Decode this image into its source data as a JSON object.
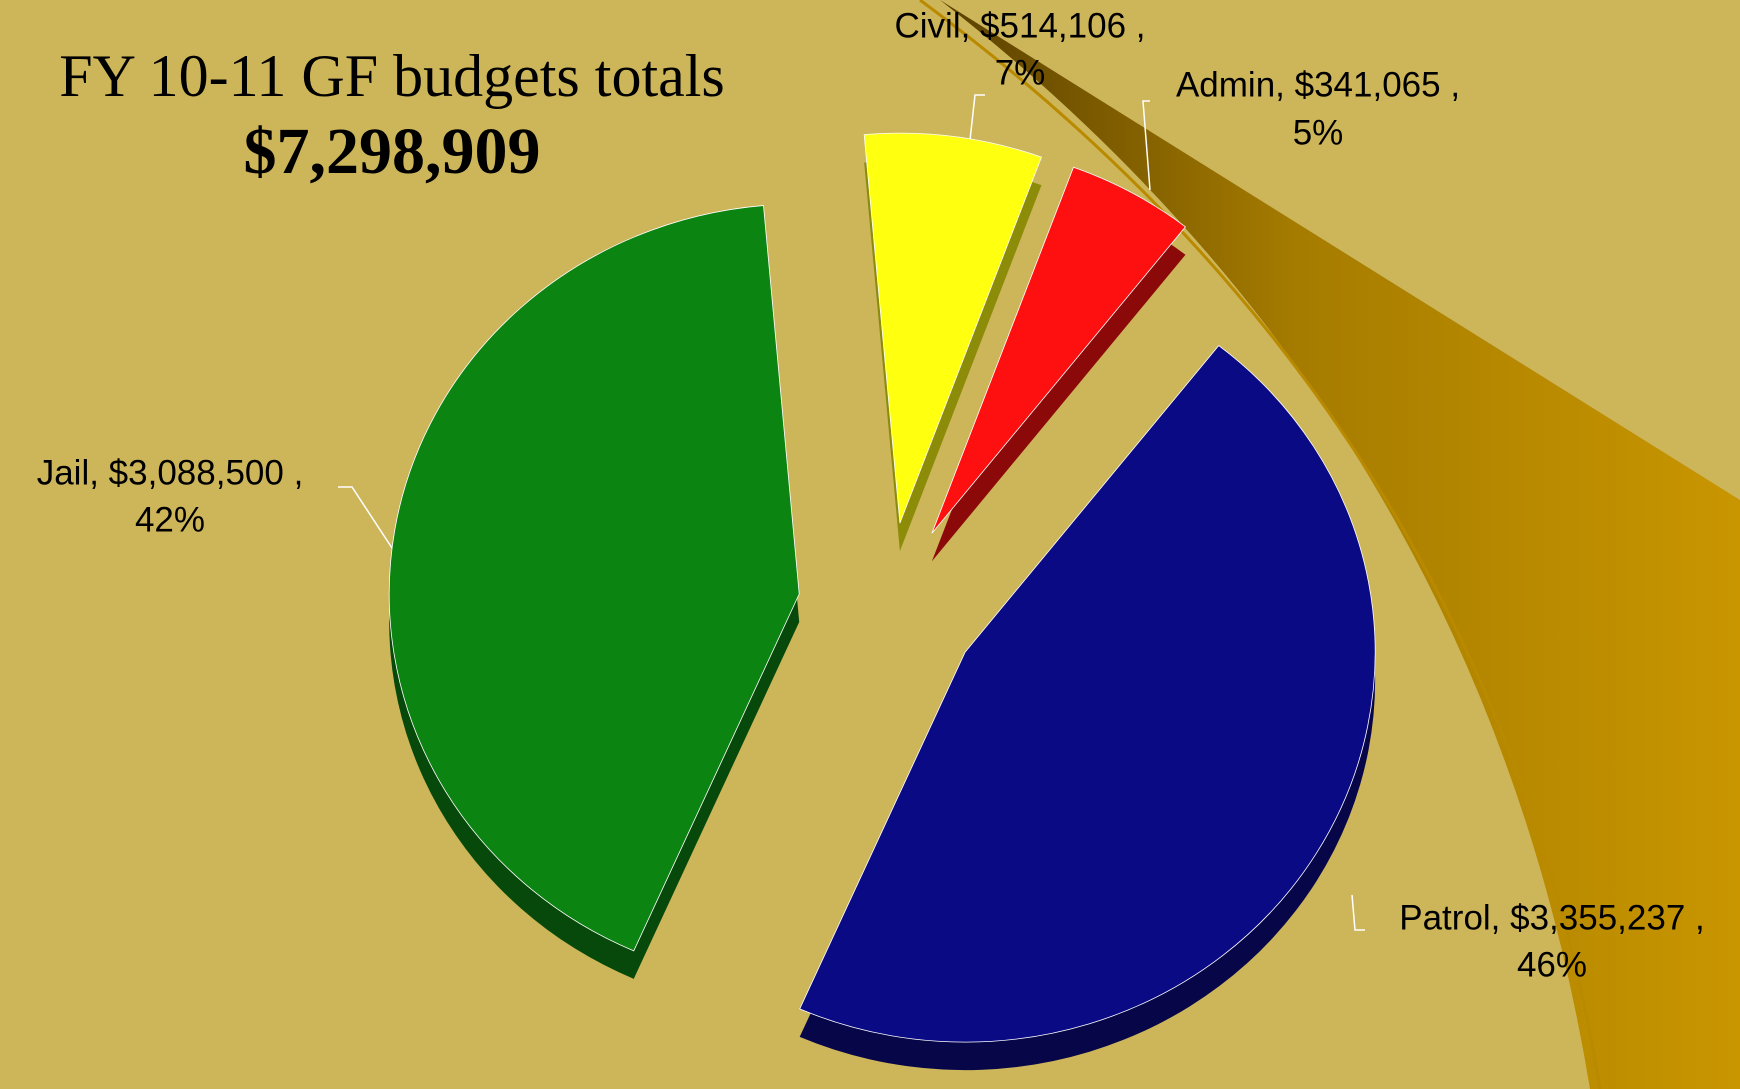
{
  "chart_data": {
    "type": "pie",
    "title": "FY 10-11 GF budgets totals",
    "subtitle": "$7,298,909",
    "labels": [
      "Civil,  $514,106 ,",
      "Admin,  $341,065 ,",
      "Patrol,  $3,355,237 ,",
      "Jail,  $3,088,500 ,"
    ],
    "values": [
      7,
      5,
      46,
      42
    ],
    "value_labels": [
      "7%",
      "5%",
      "46%",
      "42%"
    ],
    "colors": [
      "#ffff10",
      "#ff1010",
      "#0a0a85",
      "#0b8412"
    ]
  }
}
